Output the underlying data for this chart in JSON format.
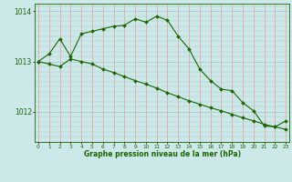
{
  "line1_x": [
    0,
    1,
    2,
    3,
    4,
    5,
    6,
    7,
    8,
    9,
    10,
    11,
    12,
    13,
    14,
    15,
    16,
    17,
    18,
    19,
    20,
    21,
    22,
    23
  ],
  "line1_y": [
    1013.0,
    1013.15,
    1013.45,
    1013.1,
    1013.55,
    1013.6,
    1013.65,
    1013.7,
    1013.72,
    1013.85,
    1013.78,
    1013.9,
    1013.82,
    1013.5,
    1013.25,
    1012.85,
    1012.62,
    1012.45,
    1012.42,
    1012.18,
    1012.02,
    1011.72,
    1011.7,
    1011.82
  ],
  "line2_x": [
    0,
    1,
    2,
    3,
    4,
    5,
    6,
    7,
    8,
    9,
    10,
    11,
    12,
    13,
    14,
    15,
    16,
    17,
    18,
    19,
    20,
    21,
    22,
    23
  ],
  "line2_y": [
    1013.0,
    1012.95,
    1012.9,
    1013.05,
    1013.0,
    1012.95,
    1012.85,
    1012.78,
    1012.7,
    1012.62,
    1012.55,
    1012.47,
    1012.38,
    1012.3,
    1012.22,
    1012.15,
    1012.08,
    1012.02,
    1011.95,
    1011.88,
    1011.82,
    1011.75,
    1011.7,
    1011.65
  ],
  "line_color": "#1a6600",
  "bg_color": "#cce8e8",
  "grid_h_color": "#aacece",
  "vline_color": "#ee9999",
  "axis_color": "#1a6600",
  "ylabel_ticks": [
    1012,
    1013,
    1014
  ],
  "xlabel_ticks": [
    0,
    1,
    2,
    3,
    4,
    5,
    6,
    7,
    8,
    9,
    10,
    11,
    12,
    13,
    14,
    15,
    16,
    17,
    18,
    19,
    20,
    21,
    22,
    23
  ],
  "xlabel_label": "Graphe pression niveau de la mer (hPa)",
  "ylim": [
    1011.4,
    1014.15
  ],
  "xlim": [
    -0.3,
    23.3
  ]
}
